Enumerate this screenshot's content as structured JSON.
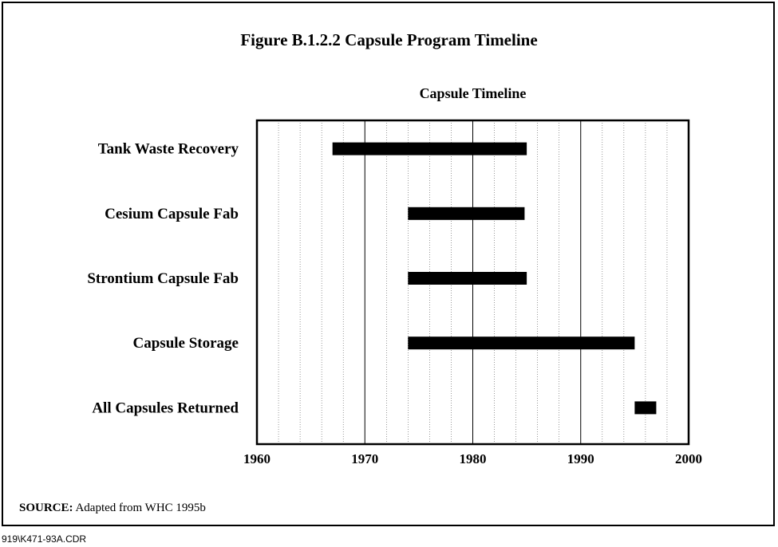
{
  "figure_title": "Figure B.1.2.2  Capsule Program Timeline",
  "source": {
    "label": "SOURCE:",
    "text": "Adapted from WHC 1995b"
  },
  "file_code": "919\\K471-93A.CDR",
  "chart_data": {
    "type": "bar",
    "orientation": "horizontal",
    "title": "Capsule Timeline",
    "xlabel": "",
    "ylabel": "",
    "xlim": [
      1960,
      2000
    ],
    "xticks": [
      1960,
      1970,
      1980,
      1990,
      2000
    ],
    "minor_grid_step": 2,
    "grid": true,
    "categories": [
      "Tank Waste Recovery",
      "Cesium Capsule Fab",
      "Strontium Capsule Fab",
      "Capsule Storage",
      "All Capsules Returned"
    ],
    "ranges": [
      [
        1967,
        1985
      ],
      [
        1974,
        1984.8
      ],
      [
        1974,
        1985
      ],
      [
        1974,
        1995
      ],
      [
        1995,
        1997
      ]
    ],
    "bar_color": "#000000"
  }
}
